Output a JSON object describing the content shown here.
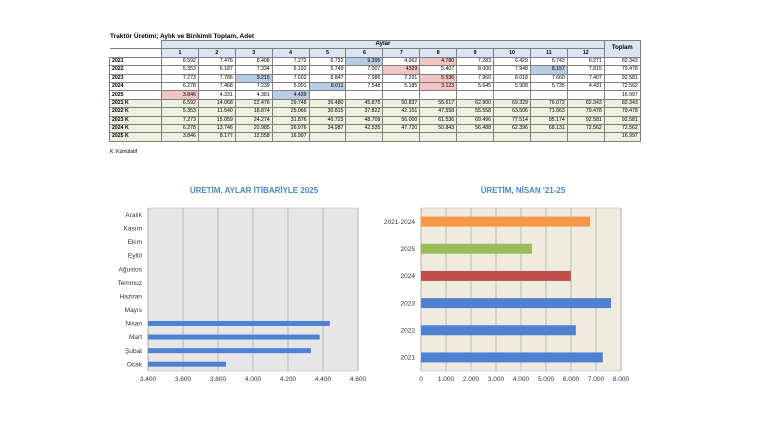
{
  "title": "Traktör Üretimi; Aylık ve Birikimli Toplam, Adet",
  "table": {
    "group_header": "Aylar",
    "total_header": "Toplam",
    "months": [
      "1",
      "2",
      "3",
      "4",
      "5",
      "6",
      "7",
      "8",
      "9",
      "10",
      "11",
      "12"
    ],
    "rows": [
      {
        "label": "2021",
        "values": [
          "6.592",
          "7.476",
          "8.408",
          "7.272",
          "6.732",
          "9.395",
          "4.962",
          "4.780",
          "7.283",
          "6.429",
          "6.743",
          "6.271"
        ],
        "total": "82.343",
        "cumulative": false
      },
      {
        "label": "2022",
        "values": [
          "5.353",
          "6.187",
          "7.334",
          "6.192",
          "5.749",
          "7.007",
          "4329",
          "5.407",
          "8.000",
          "7.948",
          "8.157",
          "7.815"
        ],
        "total": "79.478",
        "cumulative": false
      },
      {
        "label": "2023",
        "values": [
          "7.273",
          "7.786",
          "9.215",
          "7.602",
          "8.847",
          "7.986",
          "7.291",
          "5.536",
          "7.960",
          "8.018",
          "7.660",
          "7.407"
        ],
        "total": "92.581",
        "cumulative": false
      },
      {
        "label": "2024",
        "values": [
          "6.278",
          "7.468",
          "7.239",
          "5.991",
          "8.011",
          "7.548",
          "5.185",
          "3.123",
          "5.645",
          "5.908",
          "5.735",
          "4.431"
        ],
        "total": "72.562",
        "cumulative": false
      },
      {
        "label": "2025",
        "values": [
          "3.846",
          "4.331",
          "4.381",
          "4.439",
          "",
          "",
          "",
          "",
          "",
          "",
          "",
          ""
        ],
        "total": "16.997",
        "cumulative": false
      },
      {
        "label": "2021 K",
        "values": [
          "6.592",
          "14.068",
          "22.476",
          "29.748",
          "36.480",
          "45.875",
          "50.837",
          "55.617",
          "62.900",
          "69.329",
          "76.072",
          "82.343"
        ],
        "total": "82.343",
        "cumulative": true
      },
      {
        "label": "2022 K",
        "values": [
          "5.353",
          "11.540",
          "18.874",
          "25.066",
          "30.815",
          "37.822",
          "42.151",
          "47.558",
          "55.558",
          "63.506",
          "71.663",
          "79.478"
        ],
        "total": "79.478",
        "cumulative": true
      },
      {
        "label": "2023 K",
        "values": [
          "7.273",
          "15.059",
          "24.274",
          "31.876",
          "40.723",
          "48.709",
          "56.000",
          "61.536",
          "69.496",
          "77.514",
          "85.174",
          "92.581"
        ],
        "total": "92.581",
        "cumulative": true
      },
      {
        "label": "2024 K",
        "values": [
          "6.278",
          "13.746",
          "20.985",
          "26.976",
          "34.987",
          "42.535",
          "47.720",
          "50.843",
          "56.488",
          "62.396",
          "68.131",
          "72.562"
        ],
        "total": "72.562",
        "cumulative": true
      },
      {
        "label": "2025 K",
        "values": [
          "3.846",
          "8.177",
          "12.558",
          "16.997",
          "",
          "",
          "",
          "",
          "",
          "",
          "",
          ""
        ],
        "total": "16.997",
        "cumulative": true
      }
    ]
  },
  "note": "K: Kümülatif",
  "colors": {
    "blue_highlight": "#b8cce4",
    "red_highlight": "#f2c4c4",
    "bar_blue": "#4f81d2"
  },
  "chart_data": [
    {
      "type": "bar",
      "orientation": "horizontal",
      "title": "ÜRETİM, AYLAR İTİBARİYLE 2025",
      "categories": [
        "Ocak",
        "Şubat",
        "Mart",
        "Nisan",
        "Mayıs",
        "Haziran",
        "Temmuz",
        "Ağustos",
        "Eylül",
        "Ekim",
        "Kasım",
        "Aralık"
      ],
      "values": [
        3846,
        4331,
        4381,
        4439,
        null,
        null,
        null,
        null,
        null,
        null,
        null,
        null
      ],
      "xlim": [
        3400,
        4600
      ],
      "xticks": [
        "3.400",
        "3.600",
        "3.800",
        "4.000",
        "4.200",
        "4.400",
        "4.600"
      ],
      "grid": true,
      "colors": [
        "#4f81d2"
      ]
    },
    {
      "type": "bar",
      "orientation": "horizontal",
      "title": "ÜRETİM, NİSAN '21-25",
      "categories": [
        "2021",
        "2022",
        "2023",
        "2024",
        "2025",
        "2021-2024"
      ],
      "values": [
        7272,
        6192,
        7602,
        5991,
        4439,
        6764
      ],
      "xlim": [
        0,
        8000
      ],
      "xticks": [
        "0",
        "1.000",
        "2.000",
        "3.000",
        "4.000",
        "5.000",
        "6.000",
        "7.000",
        "8.000"
      ],
      "grid": true,
      "colors": [
        "#4f81d2",
        "#4f81d2",
        "#4f81d2",
        "#c0504d",
        "#9bbb59",
        "#f79646"
      ]
    }
  ]
}
